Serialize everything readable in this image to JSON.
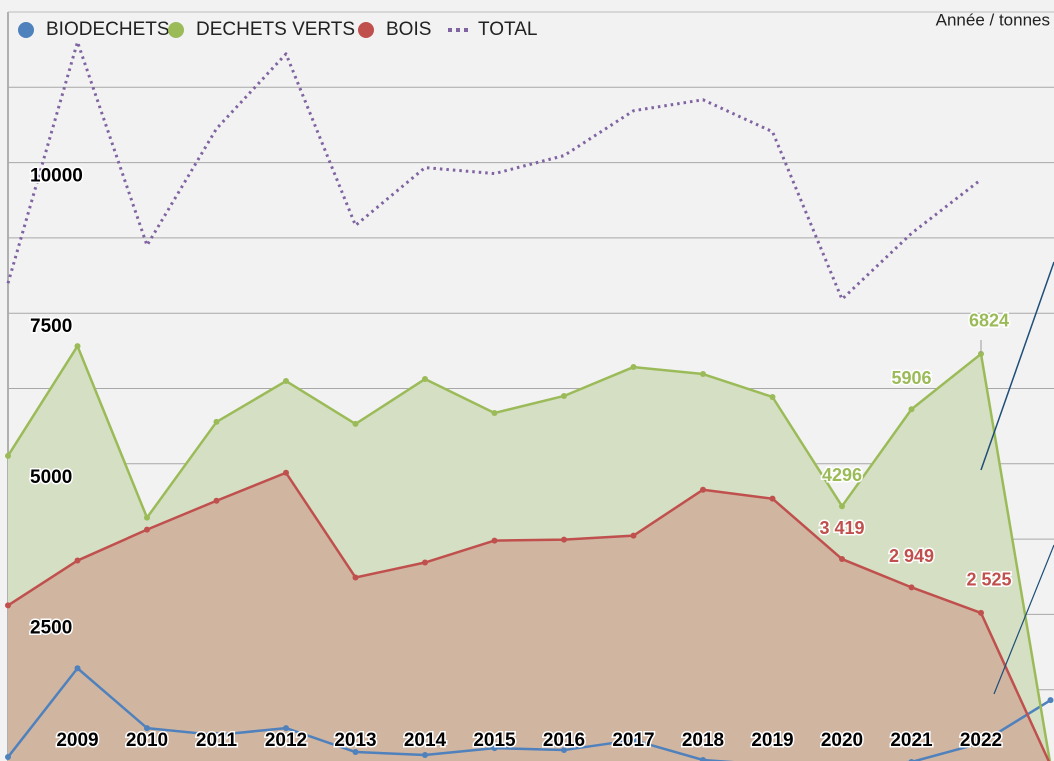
{
  "chart_data": {
    "type": "area",
    "unit_label": "Année / tonnes",
    "categories": [
      null,
      "2009",
      "2010",
      "2011",
      "2012",
      "2013",
      "2014",
      "2015",
      "2016",
      "2017",
      "2018",
      "2019",
      "2020",
      "2021",
      "2022",
      null
    ],
    "ylim": [
      0,
      12500
    ],
    "yticks": [
      2500,
      5000,
      7500,
      10000
    ],
    "minor_yticks": [
      1250,
      3750,
      6250,
      8750,
      11250
    ],
    "grid": true,
    "legend": "top-left",
    "series": [
      {
        "name": "BIODECHETS",
        "color": "#4f81bd",
        "style": "line",
        "values": [
          132,
          1606,
          613,
          497,
          613,
          215,
          166,
          281,
          248,
          414,
          83,
          0,
          0,
          50,
          364,
          1076
        ]
      },
      {
        "name": "DECHETS VERTS",
        "color": "#9bbb59",
        "style": "area",
        "fill": "#d5dfc3",
        "values": [
          5132,
          6954,
          4106,
          5695,
          6374,
          5662,
          6407,
          5844,
          6126,
          6606,
          6490,
          6109,
          4296,
          5906,
          6824,
          0
        ],
        "value_labels": [
          null,
          null,
          null,
          null,
          null,
          null,
          null,
          null,
          null,
          null,
          null,
          null,
          "4296",
          "5906",
          "6824",
          null
        ]
      },
      {
        "name": "BOIS",
        "color": "#c0504d",
        "style": "area",
        "fill": "#d0b5a1",
        "values": [
          2649,
          3394,
          3907,
          4387,
          4851,
          3113,
          3361,
          3725,
          3742,
          3808,
          4570,
          4421,
          3419,
          2949,
          2525,
          0
        ],
        "value_labels": [
          null,
          null,
          null,
          null,
          null,
          null,
          null,
          null,
          null,
          null,
          null,
          null,
          "3 419",
          "2 949",
          "2 525",
          null
        ]
      },
      {
        "name": "TOTAL",
        "color": "#8064a2",
        "style": "dotted",
        "values": [
          7997,
          12003,
          8626,
          10563,
          11805,
          8957,
          9917,
          9818,
          10116,
          10861,
          11043,
          10513,
          7732,
          8825,
          9719,
          null
        ]
      }
    ]
  }
}
